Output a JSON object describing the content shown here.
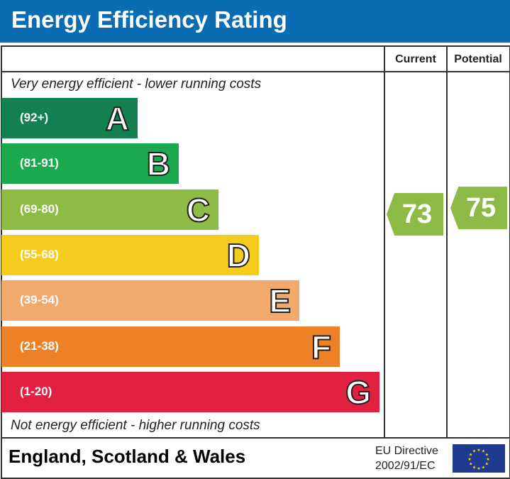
{
  "title": "Energy Efficiency Rating",
  "columns": {
    "current": "Current",
    "potential": "Potential"
  },
  "top_note": "Very energy efficient - lower running costs",
  "bottom_note": "Not energy efficient - higher running costs",
  "bands": [
    {
      "letter": "A",
      "range": "(92+)",
      "color": "#12804f"
    },
    {
      "letter": "B",
      "range": "(81-91)",
      "color": "#1ba84f"
    },
    {
      "letter": "C",
      "range": "(69-80)",
      "color": "#8dbb45"
    },
    {
      "letter": "D",
      "range": "(55-68)",
      "color": "#f4cc1e"
    },
    {
      "letter": "E",
      "range": "(39-54)",
      "color": "#f2a96c"
    },
    {
      "letter": "F",
      "range": "(21-38)",
      "color": "#ec8127"
    },
    {
      "letter": "G",
      "range": "(1-20)",
      "color": "#e1213f"
    }
  ],
  "current": {
    "value": "73",
    "color": "#8dbb45"
  },
  "potential": {
    "value": "75",
    "color": "#8dbb45"
  },
  "footer": {
    "region": "England, Scotland & Wales",
    "directive_line1": "EU Directive",
    "directive_line2": "2002/91/EC",
    "flag": "eu-flag-icon"
  }
}
